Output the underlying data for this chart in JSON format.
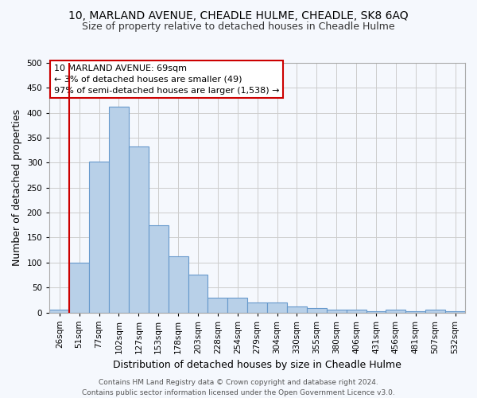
{
  "title1": "10, MARLAND AVENUE, CHEADLE HULME, CHEADLE, SK8 6AQ",
  "title2": "Size of property relative to detached houses in Cheadle Hulme",
  "xlabel": "Distribution of detached houses by size in Cheadle Hulme",
  "ylabel": "Number of detached properties",
  "categories": [
    "26sqm",
    "51sqm",
    "77sqm",
    "102sqm",
    "127sqm",
    "153sqm",
    "178sqm",
    "203sqm",
    "228sqm",
    "254sqm",
    "279sqm",
    "304sqm",
    "330sqm",
    "355sqm",
    "380sqm",
    "406sqm",
    "431sqm",
    "456sqm",
    "481sqm",
    "507sqm",
    "532sqm"
  ],
  "values": [
    5,
    99,
    302,
    413,
    332,
    175,
    112,
    76,
    29,
    29,
    20,
    20,
    12,
    8,
    5,
    5,
    2,
    5,
    2,
    5,
    2
  ],
  "bar_color": "#b8d0e8",
  "bar_edge_color": "#6699cc",
  "highlight_bar_index": 1,
  "highlight_bar_edge_color": "#cc0000",
  "annotation_box_text": "10 MARLAND AVENUE: 69sqm\n← 3% of detached houses are smaller (49)\n97% of semi-detached houses are larger (1,538) →",
  "vline_x": 1,
  "ylim": [
    0,
    500
  ],
  "yticks": [
    0,
    50,
    100,
    150,
    200,
    250,
    300,
    350,
    400,
    450,
    500
  ],
  "grid_color": "#cccccc",
  "bg_color": "#f5f8fd",
  "footer1": "Contains HM Land Registry data © Crown copyright and database right 2024.",
  "footer2": "Contains public sector information licensed under the Open Government Licence v3.0.",
  "title1_fontsize": 10,
  "title2_fontsize": 9,
  "xlabel_fontsize": 9,
  "ylabel_fontsize": 9,
  "tick_fontsize": 7.5,
  "annotation_fontsize": 8,
  "footer_fontsize": 6.5
}
